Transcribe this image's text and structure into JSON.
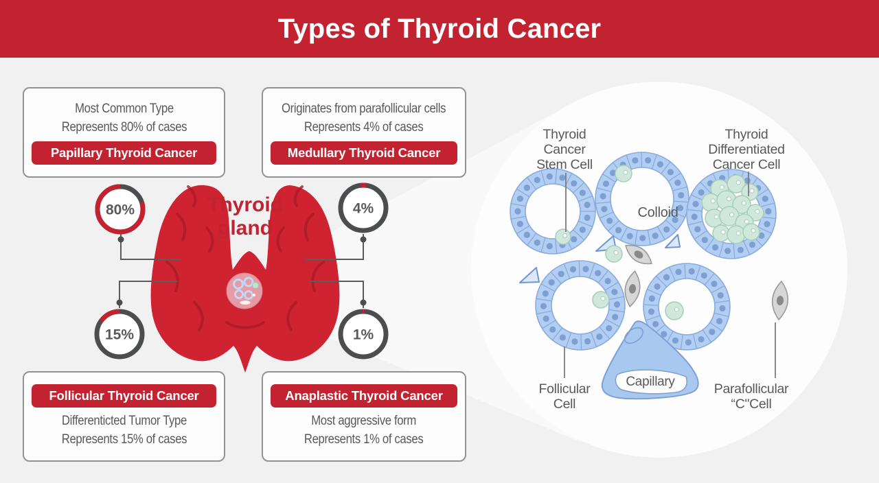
{
  "header": {
    "title": "Types of Thyroid Cancer"
  },
  "colors": {
    "primary_red": "#c32330",
    "gland_red": "#d02331",
    "gland_shade": "#a81c27",
    "text_gray": "#58595b",
    "ring_gray": "#4c4d4f",
    "connector_gray": "#5a5b5d",
    "cell_blue": "#b2cef2",
    "cell_blue_line": "#88abdc",
    "nucleus_blue": "#7e9fd2",
    "cancer_green": "#cfe8db",
    "cancer_green_line": "#a6cdb8",
    "stroma_gray": "#d7d7d8",
    "stroma_gray_line": "#9a9a9c",
    "inset_pink": "#e79ba4",
    "background": "#f1f1f2",
    "box_background": "#fdfdfe",
    "box_border": "#909295"
  },
  "gland": {
    "label": "Thyroid\ngland"
  },
  "types": {
    "papillary": {
      "percent": "80%",
      "description": "Most Common Type\nRepresents 80% of cases",
      "name": "Papillary Thyroid Cancer"
    },
    "medullary": {
      "percent": "4%",
      "description": "Originates from parafollicular cells\nRepresents 4% of cases",
      "name": "Medullary Thyroid Cancer"
    },
    "follicular": {
      "percent": "15%",
      "description": "Differenticted Tumor Type\nRepresents 15% of cases",
      "name": "Follicular Thyroid Cancer"
    },
    "anaplastic": {
      "percent": "1%",
      "description": "Most aggressive form\nRepresents 1% of cases",
      "name": "Anaplastic Thyroid Cancer"
    }
  },
  "histology": {
    "stem_cell": "Thyroid\nCancer\nStem Cell",
    "differentiated": "Thyroid\nDifferentiated\nCancer Cell",
    "colloid": "Colloid",
    "capillary": "Capillary",
    "follicular_cell": "Follicular\nCell",
    "parafollicular_cell": "Parafollicular\n“C\"Cell"
  }
}
